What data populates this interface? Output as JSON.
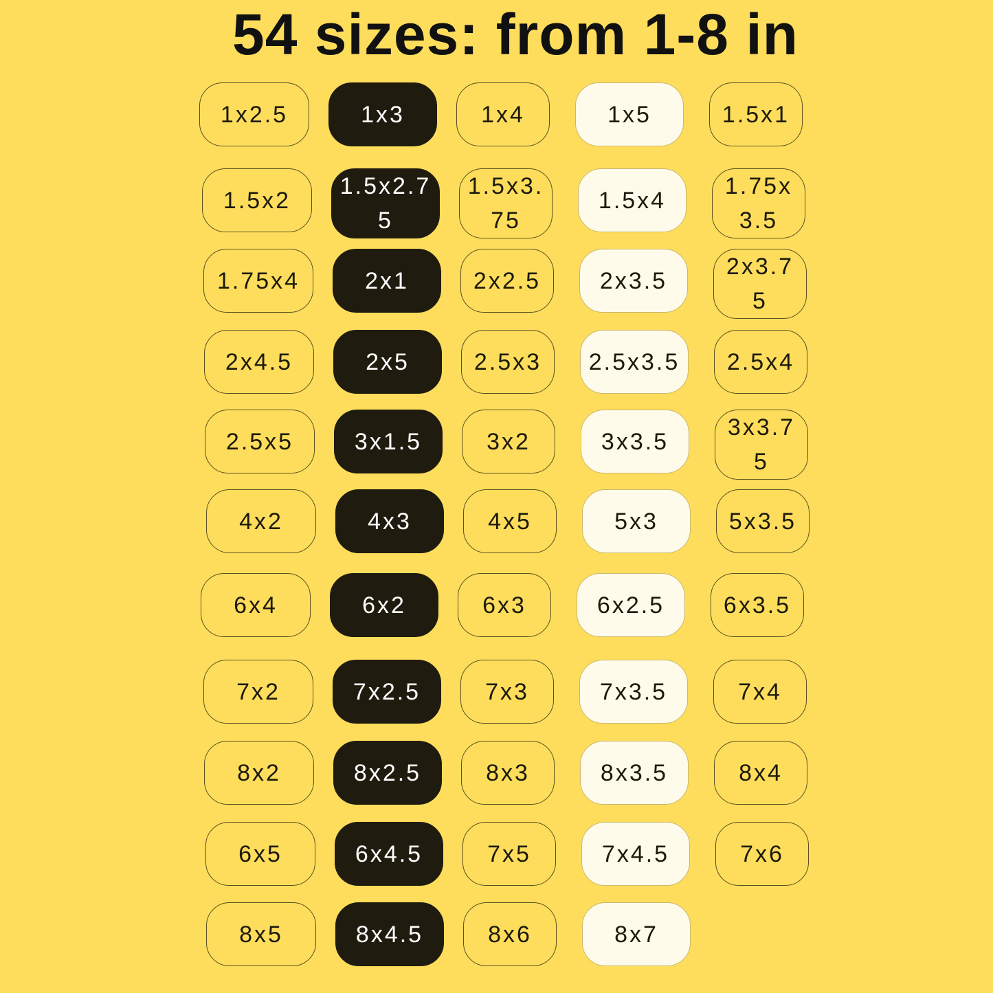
{
  "title": "54 sizes: from 1-8 in",
  "colors": {
    "background": "#FDDD5B",
    "dark_chip": "#1f1c0f",
    "cream_chip": "#FFFBEA",
    "outline": "#5a5020"
  },
  "column_styles": [
    "outline",
    "dark",
    "outline",
    "cream",
    "outline"
  ],
  "rows": [
    [
      "1x2.5",
      "1x3",
      "1x4",
      "1x5",
      "1.5x1"
    ],
    [
      "1.5x2",
      "1.5x2.75",
      "1.5x3.75",
      "1.5x4",
      "1.75x3.5"
    ],
    [
      "1.75x4",
      "2x1",
      "2x2.5",
      "2x3.5",
      "2x3.75"
    ],
    [
      "2x4.5",
      "2x5",
      "2.5x3",
      "2.5x3.5",
      "2.5x4"
    ],
    [
      "2.5x5",
      "3x1.5",
      "3x2",
      "3x3.5",
      "3x3.75"
    ],
    [
      "4x2",
      "4x3",
      "4x5",
      "5x3",
      "5x3.5"
    ],
    [
      "6x4",
      "6x2",
      "6x3",
      "6x2.5",
      "6x3.5"
    ],
    [
      "7x2",
      "7x2.5",
      "7x3",
      "7x3.5",
      "7x4"
    ],
    [
      "8x2",
      "8x2.5",
      "8x3",
      "8x3.5",
      "8x4"
    ],
    [
      "6x5",
      "6x4.5",
      "7x5",
      "7x4.5",
      "7x6"
    ],
    [
      "8x5",
      "8x4.5",
      "8x6",
      "8x7"
    ]
  ]
}
